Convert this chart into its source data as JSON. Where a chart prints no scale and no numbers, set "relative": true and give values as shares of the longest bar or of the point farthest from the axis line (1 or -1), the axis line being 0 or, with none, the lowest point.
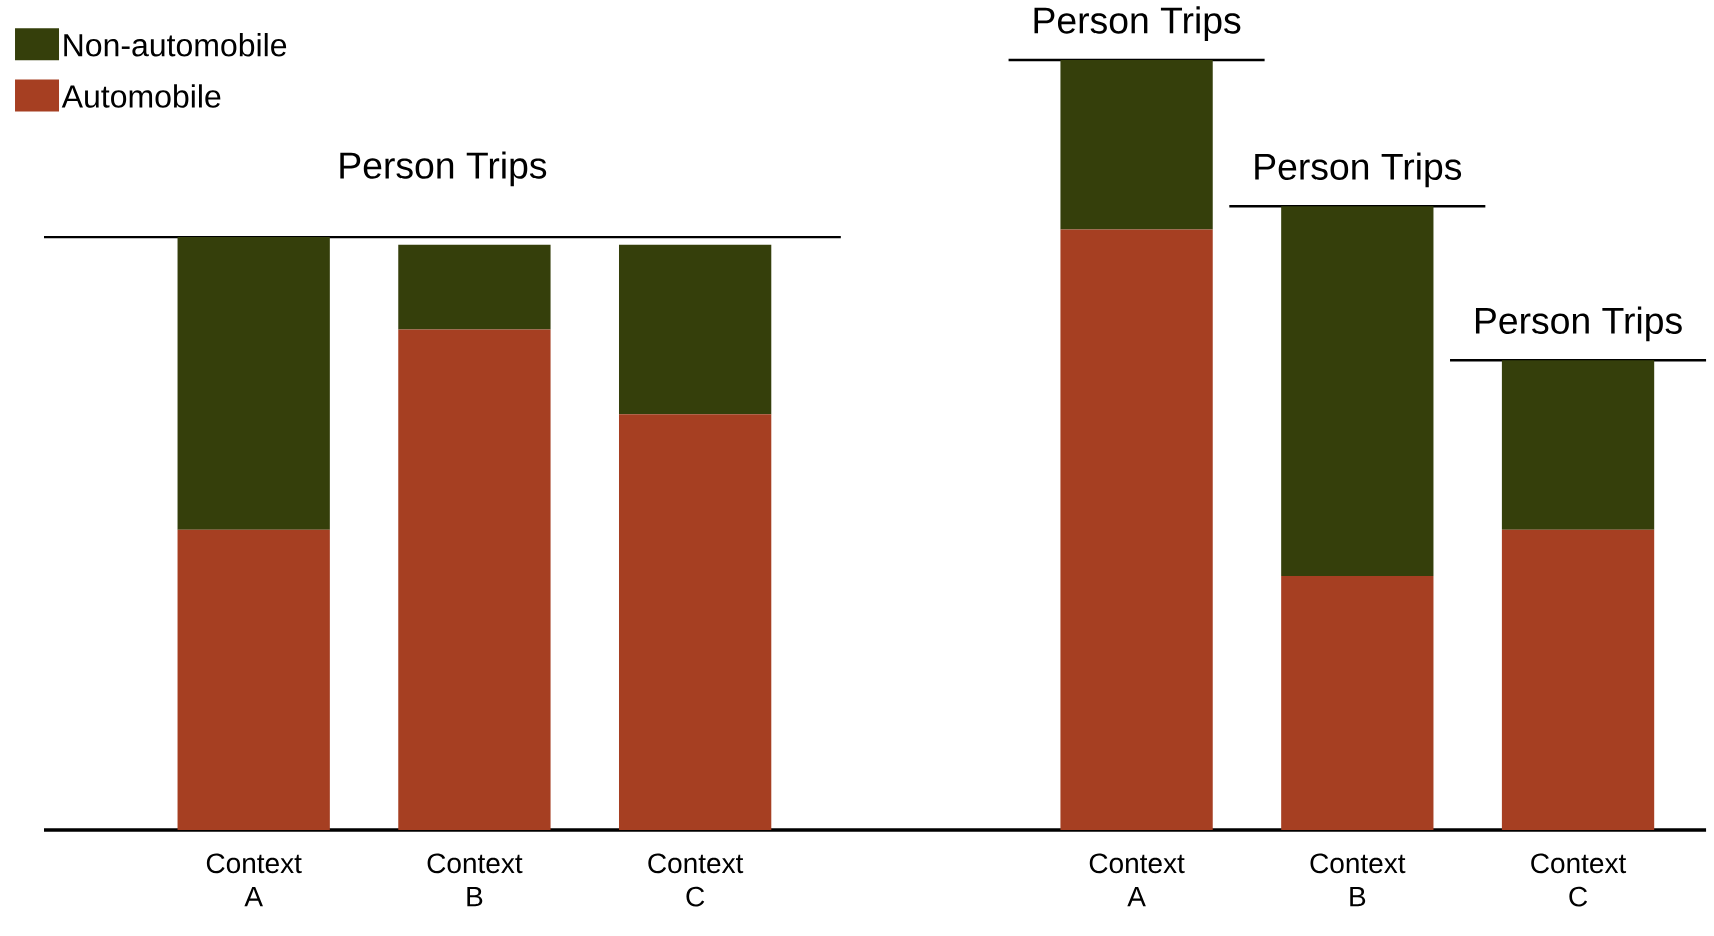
{
  "chart_data": {
    "type": "bar",
    "stacked": true,
    "relative": true,
    "legend": "top left",
    "categories": [
      "Context A",
      "Context B",
      "Context C",
      null,
      "Context A",
      "Context B",
      "Context C"
    ],
    "series": [
      {
        "name": "Automobile",
        "color": "#a63f22",
        "values": [
          0.39,
          0.65,
          0.54,
          null,
          0.78,
          0.33,
          0.39
        ]
      },
      {
        "name": "Non-automobile",
        "color": "#353f0b",
        "values": [
          0.38,
          0.11,
          0.22,
          null,
          0.22,
          0.48,
          0.22
        ]
      }
    ],
    "ref_lines": [
      {
        "axis": "y",
        "value": 0.77,
        "label": "Person Trips"
      }
    ],
    "annotations": [
      "Person Trips",
      "Person Trips",
      "Person Trips"
    ]
  }
}
